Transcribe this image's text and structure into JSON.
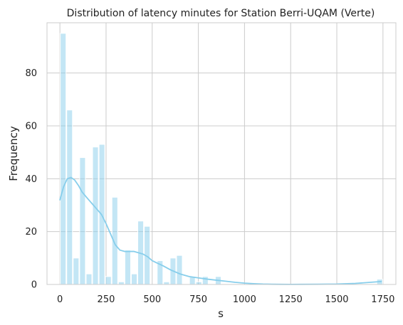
{
  "chart_data": {
    "type": "bar",
    "title": "Distribution of latency minutes for Station Berri-UQAM (Verte)",
    "xlabel": "s",
    "ylabel": "Frequency",
    "xlim": [
      -70,
      1820
    ],
    "ylim": [
      0,
      99
    ],
    "grid": true,
    "legend": "none",
    "colors": {
      "bars": "#87CEEB",
      "kde": "#87CEEB",
      "grid": "#CCCCCC",
      "frame": "#CCCCCC"
    },
    "x_ticks": [
      0,
      250,
      500,
      750,
      1000,
      1250,
      1500,
      1750
    ],
    "y_ticks": [
      0,
      20,
      40,
      60,
      80
    ],
    "bin_width": 35,
    "bins": [
      {
        "x_start": 0,
        "value": 95
      },
      {
        "x_start": 35,
        "value": 66
      },
      {
        "x_start": 70,
        "value": 10
      },
      {
        "x_start": 105,
        "value": 48
      },
      {
        "x_start": 140,
        "value": 4
      },
      {
        "x_start": 175,
        "value": 52
      },
      {
        "x_start": 210,
        "value": 53
      },
      {
        "x_start": 245,
        "value": 3
      },
      {
        "x_start": 280,
        "value": 33
      },
      {
        "x_start": 315,
        "value": 1
      },
      {
        "x_start": 350,
        "value": 13
      },
      {
        "x_start": 385,
        "value": 4
      },
      {
        "x_start": 420,
        "value": 24
      },
      {
        "x_start": 455,
        "value": 22
      },
      {
        "x_start": 490,
        "value": 0
      },
      {
        "x_start": 525,
        "value": 9
      },
      {
        "x_start": 560,
        "value": 1
      },
      {
        "x_start": 595,
        "value": 10
      },
      {
        "x_start": 630,
        "value": 11
      },
      {
        "x_start": 665,
        "value": 0
      },
      {
        "x_start": 700,
        "value": 3
      },
      {
        "x_start": 735,
        "value": 1
      },
      {
        "x_start": 770,
        "value": 3
      },
      {
        "x_start": 805,
        "value": 0
      },
      {
        "x_start": 840,
        "value": 3
      },
      {
        "x_start": 1715,
        "value": 2
      }
    ],
    "kde_line": {
      "x": [
        0,
        20,
        40,
        60,
        80,
        100,
        120,
        150,
        175,
        200,
        225,
        250,
        275,
        300,
        325,
        350,
        375,
        400,
        425,
        450,
        475,
        500,
        530,
        560,
        600,
        650,
        700,
        750,
        800,
        850,
        900,
        950,
        1000,
        1050,
        1100,
        1150,
        1200,
        1250,
        1300,
        1400,
        1500,
        1600,
        1700,
        1740
      ],
      "y": [
        32,
        37,
        40,
        40.5,
        39.5,
        37.5,
        35,
        32.5,
        30.5,
        28.5,
        26.5,
        23,
        19,
        15,
        13,
        12.5,
        12.5,
        12.5,
        12,
        11.5,
        10.5,
        9,
        8,
        7,
        5.5,
        4,
        3,
        2.5,
        2,
        1.6,
        1.2,
        0.8,
        0.5,
        0.3,
        0.15,
        0.08,
        0.05,
        0.04,
        0.05,
        0.08,
        0.15,
        0.4,
        0.9,
        1.1
      ]
    }
  }
}
